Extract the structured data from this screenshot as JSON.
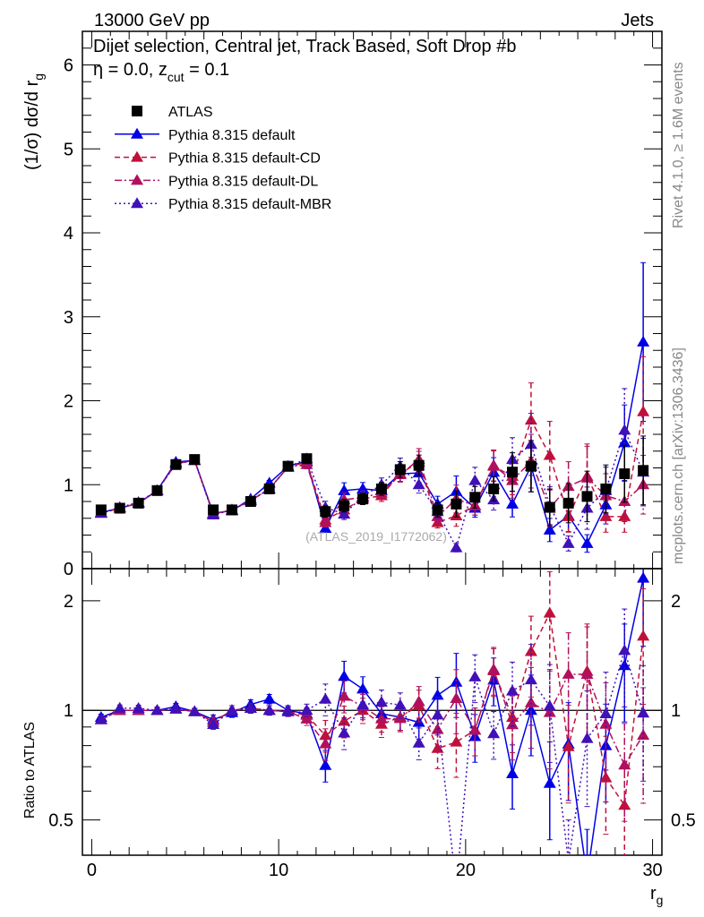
{
  "chart_data": {
    "type": "line",
    "header_left": "13000 GeV pp",
    "header_right": "Jets",
    "title_parts": [
      "Dijet selection, Central jet, Track Based, Soft Drop #b",
      "η = 0.0, z",
      "cut",
      " = 0.1"
    ],
    "ylabel": "(1/σ) dσ/d r",
    "ylabel_sub": "g",
    "xlabel": "r",
    "xlabel_sub": "g",
    "ratio_ylabel": "Ratio to ATLAS",
    "watermark": "(ATLAS_2019_I1772062)",
    "side_text_1": "Rivet 4.1.0, ≥ 1.6M events",
    "side_text_2": "mcplots.cern.ch [arXiv:1306.3436]",
    "xlim": [
      -0.5,
      30.5
    ],
    "ylim": [
      0,
      6.4
    ],
    "ratio_ylim": [
      0.4,
      2.45
    ],
    "ratio_scale": "log",
    "x_ticks": [
      "0",
      "10",
      "20",
      "30"
    ],
    "y_ticks": [
      "0",
      "1",
      "2",
      "3",
      "4",
      "5",
      "6"
    ],
    "ratio_ticks": [
      "0.5",
      "1",
      "2"
    ],
    "legend_position": "top-left",
    "x": [
      0.5,
      1.5,
      2.5,
      3.5,
      4.5,
      5.5,
      6.5,
      7.5,
      8.5,
      9.5,
      10.5,
      11.5,
      12.5,
      13.5,
      14.5,
      15.5,
      16.5,
      17.5,
      18.5,
      19.5,
      20.5,
      21.5,
      22.5,
      23.5,
      24.5,
      25.5,
      26.5,
      27.5,
      28.5,
      29.5
    ],
    "rel_err": [
      0.02,
      0.02,
      0.02,
      0.02,
      0.02,
      0.02,
      0.03,
      0.03,
      0.03,
      0.03,
      0.03,
      0.04,
      0.1,
      0.1,
      0.08,
      0.08,
      0.08,
      0.1,
      0.12,
      0.2,
      0.15,
      0.15,
      0.2,
      0.25,
      0.3,
      0.3,
      0.35,
      0.3,
      0.3,
      0.35
    ],
    "series": [
      {
        "name": "ATLAS",
        "color": "#000000",
        "marker": "square",
        "dash": "",
        "values": [
          0.7,
          0.72,
          0.78,
          0.93,
          1.24,
          1.3,
          0.7,
          0.7,
          0.8,
          0.95,
          1.22,
          1.31,
          0.68,
          0.75,
          0.83,
          0.95,
          1.18,
          1.23,
          0.7,
          0.77,
          0.85,
          0.95,
          1.15,
          1.22,
          0.73,
          0.78,
          0.86,
          0.95,
          1.13,
          1.17
        ]
      },
      {
        "name": "Pythia 8.315 default",
        "color": "#0000e6",
        "marker": "triangle",
        "dash": "",
        "values": [
          0.67,
          0.72,
          0.78,
          0.93,
          1.27,
          1.29,
          0.66,
          0.69,
          0.83,
          1.02,
          1.22,
          1.28,
          0.48,
          0.93,
          0.95,
          0.93,
          1.13,
          1.14,
          0.77,
          0.92,
          0.72,
          1.15,
          0.77,
          1.22,
          0.46,
          0.63,
          0.3,
          0.76,
          1.5,
          2.7
        ]
      },
      {
        "name": "Pythia 8.315 default-CD",
        "color": "#c0103a",
        "marker": "triangle",
        "dash": "6,4",
        "values": [
          0.66,
          0.72,
          0.78,
          0.93,
          1.25,
          1.29,
          0.65,
          0.7,
          0.81,
          0.95,
          1.21,
          1.27,
          0.58,
          0.7,
          0.83,
          0.87,
          1.13,
          1.27,
          0.55,
          0.63,
          0.75,
          1.22,
          1.1,
          1.77,
          1.35,
          0.62,
          1.1,
          0.62,
          0.62,
          1.87
        ]
      },
      {
        "name": "Pythia 8.315 default-DL",
        "color": "#b0105e",
        "marker": "triangle",
        "dash": "8,3,2,3",
        "values": [
          0.66,
          0.72,
          0.78,
          0.93,
          1.25,
          1.29,
          0.65,
          0.7,
          0.81,
          0.95,
          1.21,
          1.24,
          0.55,
          0.82,
          0.85,
          0.9,
          1.12,
          1.3,
          0.62,
          0.83,
          0.75,
          1.23,
          1.05,
          1.28,
          0.72,
          0.98,
          1.08,
          0.87,
          0.8,
          1.0
        ]
      },
      {
        "name": "Pythia 8.315 default-MBR",
        "color": "#4010b8",
        "marker": "triangle",
        "dash": "2,3",
        "values": [
          0.66,
          0.73,
          0.79,
          0.93,
          1.25,
          1.29,
          0.64,
          0.7,
          0.81,
          0.95,
          1.21,
          1.31,
          0.73,
          0.65,
          0.86,
          1.0,
          1.22,
          1.0,
          0.68,
          0.25,
          1.05,
          0.82,
          1.3,
          1.48,
          0.75,
          0.3,
          0.72,
          0.93,
          1.65,
          1.15
        ]
      }
    ]
  }
}
